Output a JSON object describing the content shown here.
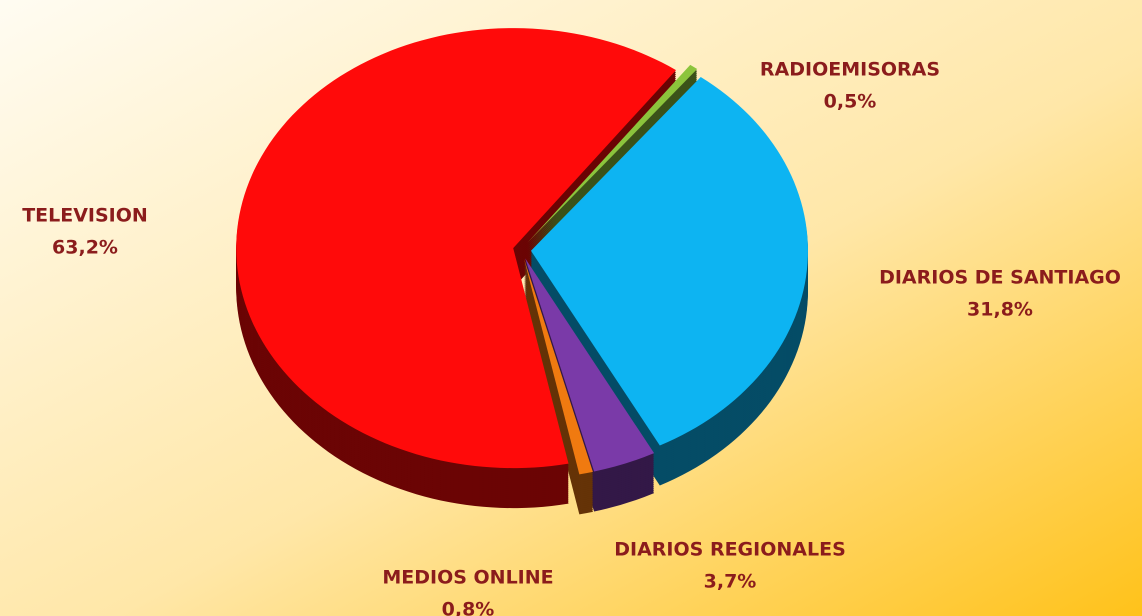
{
  "chart_data": {
    "type": "pie",
    "categories": [
      "RADIOEMISORAS",
      "DIARIOS DE SANTIAGO",
      "DIARIOS REGIONALES",
      "MEDIOS ONLINE",
      "TELEVISION"
    ],
    "values": [
      0.5,
      31.8,
      3.7,
      0.8,
      63.2
    ],
    "value_labels": [
      "0,5%",
      "31,8%",
      "3,7%",
      "0,8%",
      "63,2%"
    ],
    "colors": [
      "#8cc43c",
      "#0db4f2",
      "#7a3aa8",
      "#f07a10",
      "#ff0a0a"
    ]
  }
}
